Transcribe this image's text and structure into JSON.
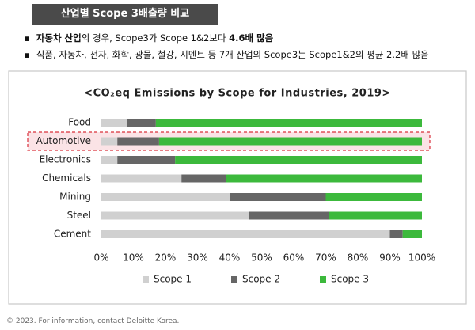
{
  "header": {
    "title": "산업별 Scope 3배출량 비교"
  },
  "bullets": [
    {
      "segments": [
        {
          "text": "자동차 산업",
          "bold": true
        },
        {
          "text": "의 경우, Scope3가 Scope 1&2보다 ",
          "bold": false
        },
        {
          "text": "4.6배 많음",
          "bold": true
        }
      ]
    },
    {
      "segments": [
        {
          "text": "식품, 자동차, 전자, 화학, 광물, 철강, 시멘트 등 7개 산업의 Scope3는 Scope1&2의 평균 2.2배 많음",
          "bold": false
        }
      ]
    }
  ],
  "chart_data": {
    "type": "bar",
    "orientation": "horizontal",
    "stacked": true,
    "title": "<CO₂eq Emissions by Scope for Industries, 2019>",
    "categories": [
      "Food",
      "Automotive",
      "Electronics",
      "Chemicals",
      "Mining",
      "Steel",
      "Cement"
    ],
    "series": [
      {
        "name": "Scope 1",
        "color": "#d0d0d0",
        "values": [
          8,
          5,
          5,
          25,
          40,
          46,
          90
        ]
      },
      {
        "name": "Scope 2",
        "color": "#666666",
        "values": [
          9,
          13,
          18,
          14,
          30,
          25,
          4
        ]
      },
      {
        "name": "Scope 3",
        "color": "#3cb93c",
        "values": [
          83,
          82,
          77,
          61,
          30,
          29,
          6
        ]
      }
    ],
    "xlim": [
      0,
      100
    ],
    "xticks": [
      {
        "value": 0,
        "label": "0%"
      },
      {
        "value": 10,
        "label": "10%"
      },
      {
        "value": 20,
        "label": "20%"
      },
      {
        "value": 30,
        "label": "30%"
      },
      {
        "value": 40,
        "label": "40%"
      },
      {
        "value": 50,
        "label": "50%"
      },
      {
        "value": 60,
        "label": "60%"
      },
      {
        "value": 70,
        "label": "70%"
      },
      {
        "value": 80,
        "label": "80%"
      },
      {
        "value": 90,
        "label": "90%"
      },
      {
        "value": 100,
        "label": "100%"
      }
    ],
    "grid": false,
    "legend": "bottom"
  },
  "footer": {
    "text": "© 2023. For information, contact Deloitte Korea."
  }
}
